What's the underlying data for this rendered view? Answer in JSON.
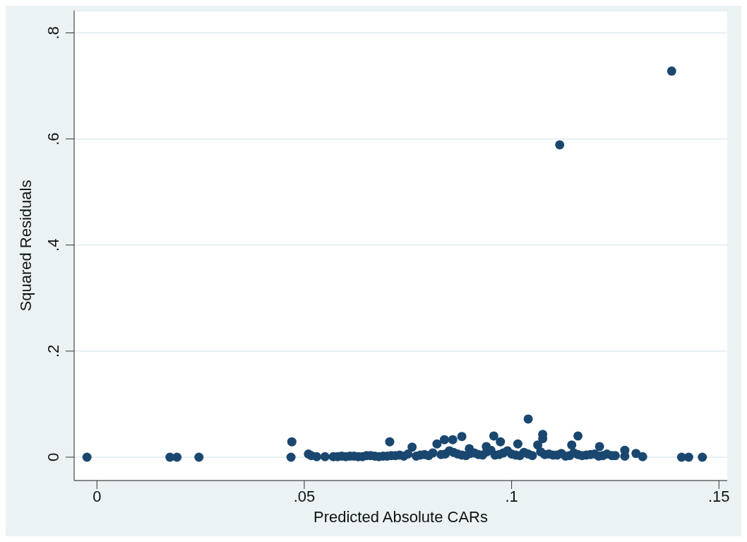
{
  "chart_data": {
    "type": "scatter",
    "xlabel": "Predicted Absolute CARs",
    "ylabel": "Squared Residuals",
    "x": [
      -0.0024,
      0.0176,
      0.0193,
      0.0246,
      0.0468,
      0.047,
      0.0517,
      0.051,
      0.053,
      0.055,
      0.057,
      0.059,
      0.061,
      0.063,
      0.065,
      0.067,
      0.069,
      0.0706,
      0.071,
      0.073,
      0.075,
      0.076,
      0.077,
      0.079,
      0.081,
      0.082,
      0.0838,
      0.084,
      0.0858,
      0.086,
      0.088,
      0.088,
      0.0898,
      0.09,
      0.092,
      0.0939,
      0.094,
      0.0957,
      0.096,
      0.0973,
      0.098,
      0.1,
      0.1015,
      0.102,
      0.104,
      0.104,
      0.1063,
      0.1075,
      0.1075,
      0.108,
      0.11,
      0.1116,
      0.112,
      0.1145,
      0.114,
      0.116,
      0.116,
      0.118,
      0.12,
      0.1212,
      0.122,
      0.1242,
      0.1273,
      0.1273,
      0.13,
      0.1316,
      0.1386,
      0.141,
      0.1427,
      0.146,
      0.058,
      0.06,
      0.062,
      0.064,
      0.066,
      0.068,
      0.07,
      0.072,
      0.074,
      0.078,
      0.08,
      0.083,
      0.085,
      0.087,
      0.089,
      0.091,
      0.093,
      0.095,
      0.097,
      0.099,
      0.101,
      0.103,
      0.105,
      0.107,
      0.109,
      0.111,
      0.113,
      0.115,
      0.117,
      0.119,
      0.121,
      0.123,
      0.125
    ],
    "values": [
      0,
      0,
      0,
      0,
      0,
      0.029,
      0.003,
      0.006,
      0.001,
      0.001,
      0.001,
      0.002,
      0.002,
      0.001,
      0.003,
      0.002,
      0.002,
      0.029,
      0.003,
      0.004,
      0.006,
      0.019,
      0.002,
      0.005,
      0.008,
      0.025,
      0.033,
      0.006,
      0.033,
      0.009,
      0.039,
      0.004,
      0.016,
      0.007,
      0.005,
      0.02,
      0.01,
      0.04,
      0.004,
      0.029,
      0.008,
      0.006,
      0.025,
      0.003,
      0.072,
      0.006,
      0.023,
      0.043,
      0.035,
      0.005,
      0.004,
      0.589,
      0.007,
      0.023,
      0.003,
      0.04,
      0.005,
      0.004,
      0.006,
      0.02,
      0.003,
      0.003,
      0.013,
      0.002,
      0.007,
      0.001,
      0.728,
      0,
      0,
      0,
      0.001,
      0.001,
      0.002,
      0.001,
      0.003,
      0.001,
      0.002,
      0.003,
      0.002,
      0.004,
      0.003,
      0.005,
      0.012,
      0.006,
      0.003,
      0.008,
      0.004,
      0.013,
      0.005,
      0.012,
      0.004,
      0.009,
      0.003,
      0.01,
      0.006,
      0.004,
      0.002,
      0.008,
      0.003,
      0.005,
      0.002,
      0.006,
      0.003
    ],
    "color": "#1a476f",
    "marker": "circle",
    "xlim": [
      -0.0055,
      0.152
    ],
    "xticks": [
      0,
      {
        "value": 0.05,
        "label": ".05"
      },
      {
        "value": 0.1,
        "label": ".1"
      },
      {
        "value": 0.15,
        "label": ".15"
      }
    ],
    "ylim": [
      -0.044,
      0.842
    ],
    "yticks": [
      0,
      {
        "value": 0.2,
        "label": ".2"
      },
      {
        "value": 0.4,
        "label": ".4"
      },
      {
        "value": 0.6,
        "label": ".6"
      },
      {
        "value": 0.8,
        "label": ".8"
      }
    ],
    "grid": "y"
  }
}
